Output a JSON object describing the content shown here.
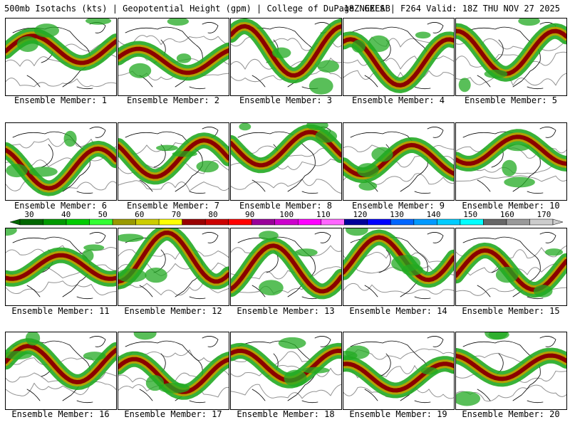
{
  "header": {
    "left": "500mb Isotachs (kts) | Geopotential Height (gpm) | College of DuPage NEXLAB",
    "right": "18Z GEFS | F264 Valid: 18Z THU NOV 27 2025"
  },
  "members": [
    "Ensemble Member: 1",
    "Ensemble Member: 2",
    "Ensemble Member: 3",
    "Ensemble Member: 4",
    "Ensemble Member: 5",
    "Ensemble Member: 6",
    "Ensemble Member: 7",
    "Ensemble Member: 8",
    "Ensemble Member: 9",
    "Ensemble Member: 10",
    "Ensemble Member: 11",
    "Ensemble Member: 12",
    "Ensemble Member: 13",
    "Ensemble Member: 14",
    "Ensemble Member: 15",
    "Ensemble Member: 16",
    "Ensemble Member: 17",
    "Ensemble Member: 18",
    "Ensemble Member: 19",
    "Ensemble Member: 20"
  ],
  "scale": {
    "labels": [
      "30",
      "40",
      "50",
      "60",
      "70",
      "80",
      "90",
      "100",
      "110",
      "120",
      "130",
      "140",
      "150",
      "160",
      "170"
    ],
    "colors": [
      "#006600",
      "#009900",
      "#00cc00",
      "#33ff33",
      "#999900",
      "#cccc00",
      "#ffff00",
      "#990000",
      "#cc0000",
      "#ff0000",
      "#990099",
      "#cc00cc",
      "#ff00ff",
      "#ff66ff",
      "#000099",
      "#0000ff",
      "#0066ff",
      "#0099ff",
      "#00ccff",
      "#00ffff",
      "#666666",
      "#999999",
      "#cccccc"
    ]
  },
  "legend_colors": {
    "jet_core": "#8b0000",
    "jet_mid": "#b8a000",
    "jet_edge": "#22aa22",
    "coast": "#000000",
    "height_contour": "#777777"
  }
}
